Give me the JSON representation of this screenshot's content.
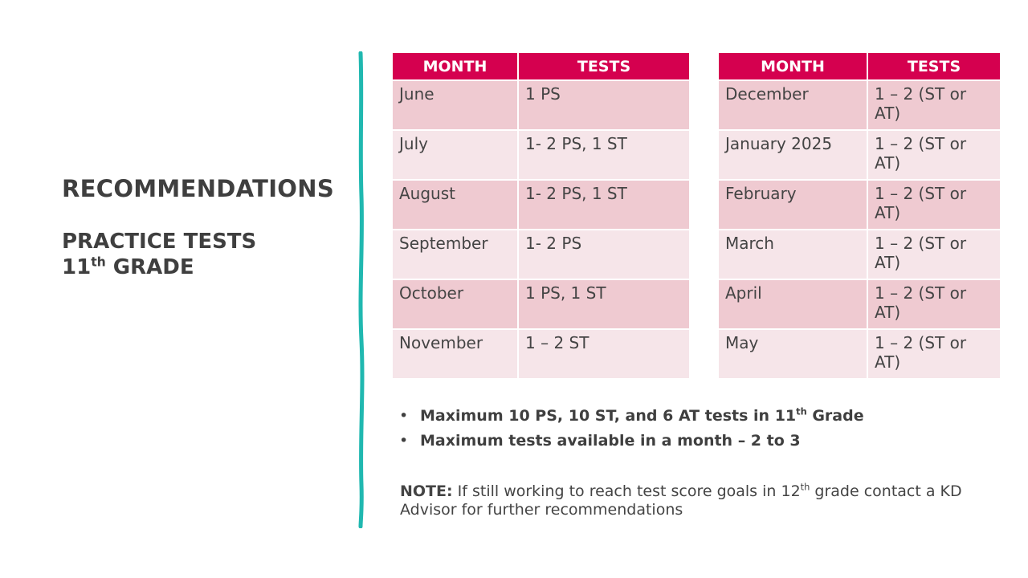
{
  "title": "RECOMMENDATIONS",
  "subtitle": {
    "line1": "PRACTICE TESTS",
    "line2_num": "11",
    "line2_sup": "th",
    "line2_rest": " GRADE"
  },
  "colors": {
    "header": "#D5004F",
    "row_dark": "#EFCAD1",
    "row_light": "#F6E5E9",
    "divider": "#20B8B0",
    "text": "#404040"
  },
  "tables": [
    {
      "headers": [
        "MONTH",
        "TESTS"
      ],
      "rows": [
        [
          "June",
          "1 PS"
        ],
        [
          "July",
          "1- 2 PS, 1 ST"
        ],
        [
          "August",
          "1- 2 PS, 1 ST"
        ],
        [
          "September",
          "1- 2 PS"
        ],
        [
          "October",
          "1 PS, 1 ST"
        ],
        [
          "November",
          "1 – 2 ST"
        ]
      ]
    },
    {
      "headers": [
        "MONTH",
        "TESTS"
      ],
      "rows": [
        [
          "December",
          "1 – 2 (ST or AT)"
        ],
        [
          "January 2025",
          "1 – 2 (ST or AT)"
        ],
        [
          "February",
          "1 – 2 (ST or AT)"
        ],
        [
          "March",
          "1 – 2 (ST or AT)"
        ],
        [
          "April",
          "1 – 2 (ST or AT)"
        ],
        [
          "May",
          "1 – 2 (ST or AT)"
        ]
      ]
    }
  ],
  "bullets": [
    {
      "text": "Maximum 10 PS, 10 ST, and 6 AT tests in 11",
      "sup": "th",
      "after": " Grade"
    },
    {
      "text": "Maximum tests available in a month – 2 to 3",
      "sup": "",
      "after": ""
    }
  ],
  "note": {
    "label": "NOTE:",
    "text": " If still working to reach test score goals in 12",
    "sup": "th",
    "after": " grade contact a KD Advisor for further recommendations"
  }
}
